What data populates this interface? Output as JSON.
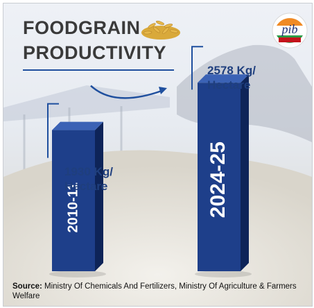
{
  "title_lines": [
    "FOODGRAIN",
    "PRODUCTIVITY"
  ],
  "logo_text": "pib",
  "annotations": {
    "first": [
      "1930 Kg/",
      "Hectare"
    ],
    "second": [
      "2578 Kg/",
      "Hectare"
    ]
  },
  "source": {
    "label": "Source:",
    "text": "Ministry Of Chemicals And Fertilizers, Ministry Of Agriculture & Farmers Welfare"
  },
  "colors": {
    "bar_front": "#1e3f8a",
    "bar_side": "#0e2458",
    "bar_top": "#3b62b5",
    "accent": "#1f4f9e"
  },
  "chart_data": {
    "type": "bar",
    "categories": [
      "2010-11",
      "2024-25"
    ],
    "values": [
      1930,
      2578
    ],
    "unit": "Kg/Hectare",
    "title": "FOODGRAIN PRODUCTIVITY"
  }
}
